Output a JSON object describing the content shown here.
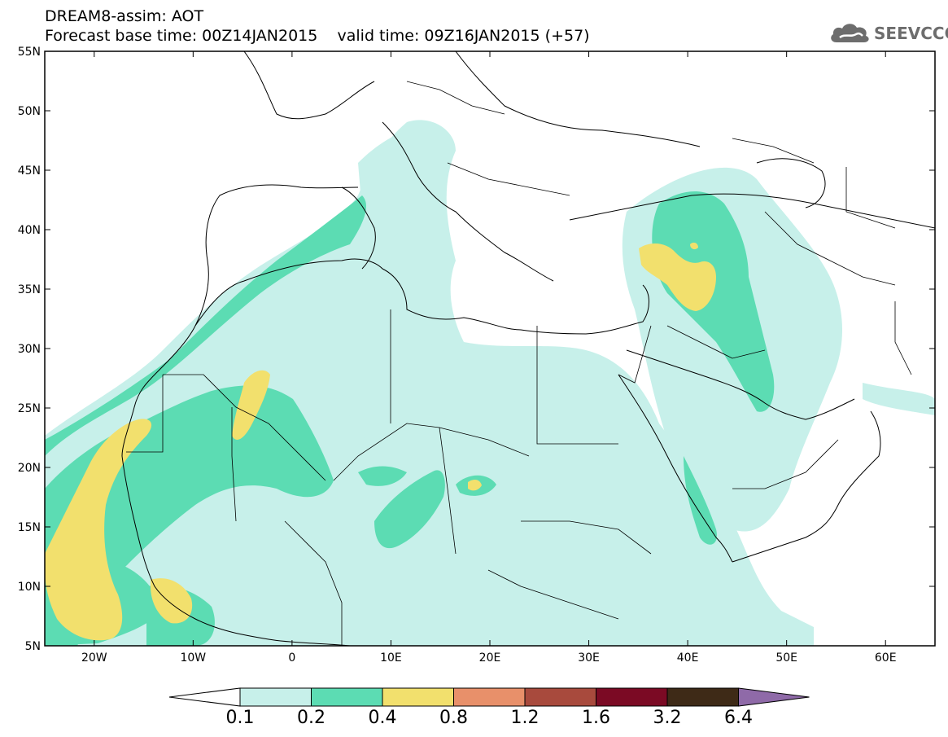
{
  "title": {
    "line1": "DREAM8-assim: AOT",
    "line2": "Forecast base time: 00Z14JAN2015    valid time: 09Z16JAN2015 (+57)"
  },
  "logo": {
    "text": "SEEVCCC",
    "icon": "cloud-icon"
  },
  "lat_labels": [
    "55N",
    "50N",
    "45N",
    "40N",
    "35N",
    "30N",
    "25N",
    "20N",
    "15N",
    "10N",
    "5N"
  ],
  "lon_labels": [
    "20W",
    "10W",
    "0",
    "10E",
    "20E",
    "30E",
    "40E",
    "50E",
    "60E"
  ],
  "colorbar": {
    "levels": [
      "0.1",
      "0.2",
      "0.4",
      "0.8",
      "1.2",
      "1.6",
      "3.2",
      "6.4"
    ],
    "colors": [
      "#ffffff",
      "#c7f0ea",
      "#5cdcb3",
      "#f2e06d",
      "#e8906a",
      "#a84a3d",
      "#7b0a24",
      "#3e2a17",
      "#8f6aa8"
    ]
  },
  "colors": {
    "low": "#c7f0ea",
    "mid": "#5cdcb3",
    "high": "#f2e06d"
  }
}
